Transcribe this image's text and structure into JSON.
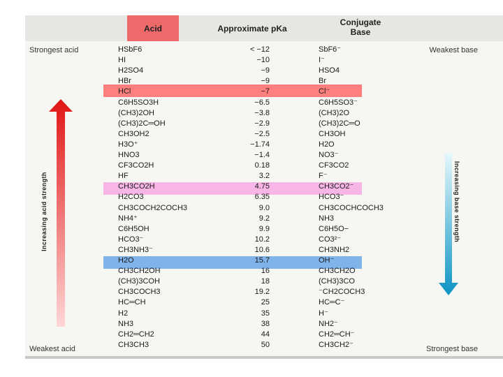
{
  "header": {
    "acid": "Acid",
    "pka": "Approximate pKa",
    "base_line1": "Conjugate",
    "base_line2": "Base"
  },
  "labels": {
    "strongest_acid": "Strongest acid",
    "weakest_base": "Weakest base",
    "weakest_acid": "Weakest acid",
    "strongest_base": "Strongest base",
    "increasing_acid": "Increasing acid strength",
    "increasing_base": "Increasing base strength"
  },
  "highlight_colors": {
    "hcl": "#ff7f7f",
    "acetic": "#f7b6e6",
    "water": "#7fb3ea"
  },
  "rows": [
    {
      "acid": "HSbF6",
      "pka": "< −12",
      "base": "SbF6⁻"
    },
    {
      "acid": "HI",
      "pka": "−10",
      "base": "I⁻"
    },
    {
      "acid": "H2SO4",
      "pka": "−9",
      "base": "HSO4"
    },
    {
      "acid": "HBr",
      "pka": "−9",
      "base": "Br"
    },
    {
      "acid": "HCl",
      "pka": "−7",
      "base": "Cl⁻"
    },
    {
      "acid": "C6H5SO3H",
      "pka": "−6.5",
      "base": "C6H5SO3⁻"
    },
    {
      "acid": "(CH3)2OH",
      "pka": "−3.8",
      "base": "(CH3)2O"
    },
    {
      "acid": "(CH3)2C═OH",
      "pka": "−2.9",
      "base": "(CH3)2C═O"
    },
    {
      "acid": "CH3OH2",
      "pka": "−2.5",
      "base": "CH3OH"
    },
    {
      "acid": "H3O⁺",
      "pka": "−1.74",
      "base": "H2O"
    },
    {
      "acid": "HNO3",
      "pka": "−1.4",
      "base": "NO3⁻"
    },
    {
      "acid": "CF3CO2H",
      "pka": "0.18",
      "base": "CF3CO2"
    },
    {
      "acid": "HF",
      "pka": "3.2",
      "base": "F⁻"
    },
    {
      "acid": "CH3CO2H",
      "pka": "4.75",
      "base": "CH3CO2⁻"
    },
    {
      "acid": "H2CO3",
      "pka": "6.35",
      "base": "HCO3⁻"
    },
    {
      "acid": "CH3COCH2COCH3",
      "pka": "9.0",
      "base": "CH3COCHCOCH3"
    },
    {
      "acid": "NH4⁺",
      "pka": "9.2",
      "base": "NH3"
    },
    {
      "acid": "C6H5OH",
      "pka": "9.9",
      "base": "C6H5O−"
    },
    {
      "acid": "HCO3⁻",
      "pka": "10.2",
      "base": "CO3²⁻"
    },
    {
      "acid": "CH3NH3⁻",
      "pka": "10.6",
      "base": "CH3NH2"
    },
    {
      "acid": "H2O",
      "pka": "15.7",
      "base": "OH⁻"
    },
    {
      "acid": "CH3CH2OH",
      "pka": "16",
      "base": "CH3CH2O"
    },
    {
      "acid": "(CH3)3COH",
      "pka": "18",
      "base": "(CH3)3CO"
    },
    {
      "acid": "CH3COCH3",
      "pka": "19.2",
      "base": "⁻CH2COCH3"
    },
    {
      "acid": "HC═CH",
      "pka": "25",
      "base": "HC═C⁻"
    },
    {
      "acid": "H2",
      "pka": "35",
      "base": "H⁻"
    },
    {
      "acid": "NH3",
      "pka": "38",
      "base": "NH2⁻"
    },
    {
      "acid": "CH2═CH2",
      "pka": "44",
      "base": "CH2═CH⁻"
    },
    {
      "acid": "CH3CH3",
      "pka": "50",
      "base": "CH3CH2⁻"
    }
  ]
}
